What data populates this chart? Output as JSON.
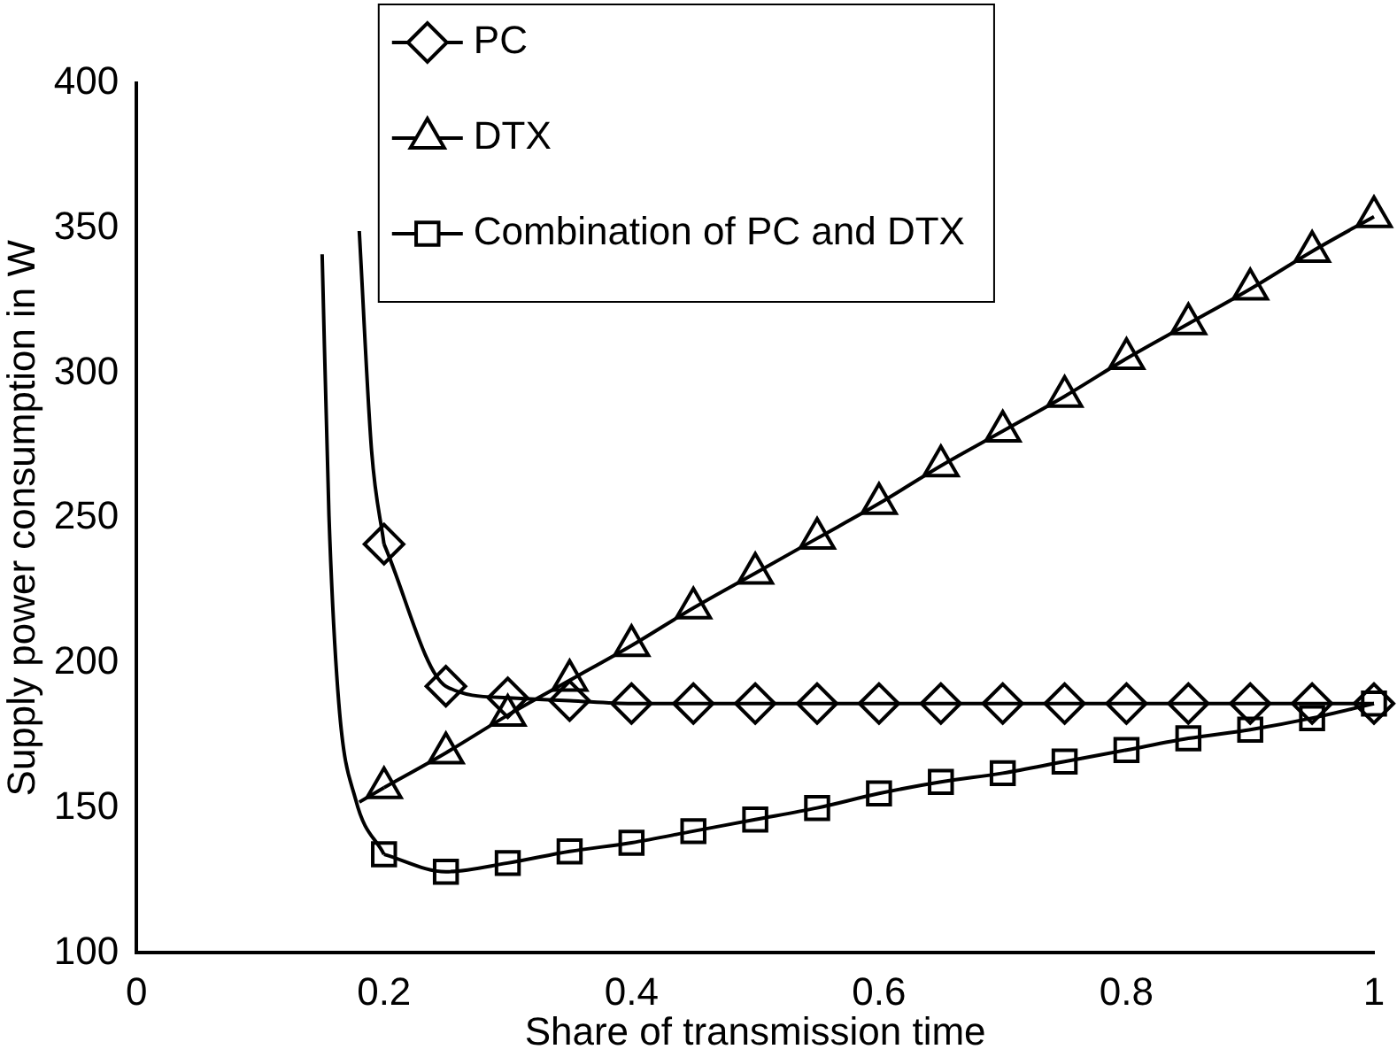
{
  "chart_data": {
    "type": "line",
    "xlabel": "Share of transmission time",
    "ylabel": "Supply power consumption in W",
    "xlim": [
      0,
      1
    ],
    "xticks": [
      0,
      0.2,
      0.4,
      0.6,
      0.8,
      1
    ],
    "ylim": [
      100,
      400
    ],
    "yticks": [
      100,
      150,
      200,
      250,
      300,
      350,
      400
    ],
    "grid": false,
    "legend": "top",
    "line_style": "solid",
    "series": [
      {
        "name": "PC",
        "color": "#000000",
        "marker": "diamond",
        "x": [
          0.2,
          0.25,
          0.3,
          0.35,
          0.4,
          0.45,
          0.5,
          0.55,
          0.6,
          0.65,
          0.7,
          0.75,
          0.8,
          0.85,
          0.9,
          0.95,
          1
        ],
        "values": [
          241,
          192,
          188,
          187,
          186,
          186,
          186,
          186,
          186,
          186,
          186,
          186,
          186,
          186,
          186,
          186,
          186
        ]
      },
      {
        "name": "DTX",
        "color": "#000000",
        "marker": "triangle",
        "x": [
          0.2,
          0.25,
          0.3,
          0.35,
          0.4,
          0.45,
          0.5,
          0.55,
          0.6,
          0.65,
          0.7,
          0.75,
          0.8,
          0.85,
          0.9,
          0.95,
          1
        ],
        "values": [
          157,
          169,
          182,
          194,
          206,
          219,
          231,
          243,
          255,
          268,
          280,
          292,
          305,
          317,
          329,
          342,
          354
        ]
      },
      {
        "name": "Combination of PC and DTX",
        "color": "#000000",
        "marker": "square",
        "x": [
          0.2,
          0.25,
          0.3,
          0.35,
          0.4,
          0.45,
          0.5,
          0.55,
          0.6,
          0.65,
          0.7,
          0.75,
          0.8,
          0.85,
          0.9,
          0.95,
          1
        ],
        "values": [
          134,
          128,
          131,
          135,
          138,
          142,
          146,
          150,
          155,
          159,
          162,
          166,
          170,
          174,
          177,
          181,
          186
        ]
      },
      {
        "color": "#000000",
        "marker": "none",
        "x": [
          0.18,
          0.19,
          0.2
        ],
        "values": [
          349,
          273,
          241
        ]
      },
      {
        "color": "#000000",
        "marker": "none",
        "x": [
          0.18,
          0.2
        ],
        "values": [
          152,
          157
        ]
      },
      {
        "color": "#000000",
        "marker": "none",
        "x": [
          0.15,
          0.1555,
          0.1635,
          0.177,
          0.2
        ],
        "values": [
          341,
          251,
          186,
          153,
          134
        ]
      }
    ]
  }
}
